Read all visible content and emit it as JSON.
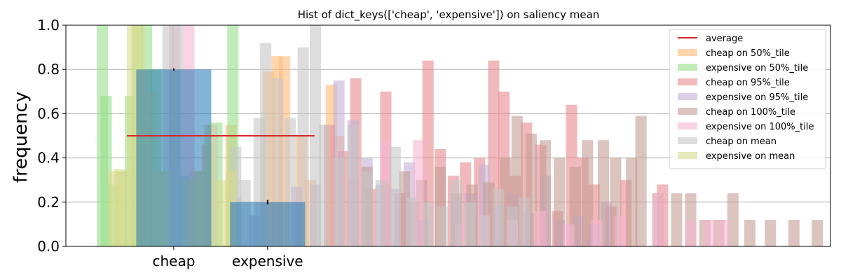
{
  "chart_data": {
    "type": "bar",
    "title": "Hist of dict_keys(['cheap', 'expensive']) on saliency mean",
    "xlabel": "",
    "ylabel": "frequency",
    "ylim": [
      0,
      1.0
    ],
    "yticks": [
      "0.0",
      "0.2",
      "0.4",
      "0.6",
      "0.8",
      "1.0"
    ],
    "grid": "y",
    "legend_position": "top-right",
    "categories": [
      "cheap",
      "expensive"
    ],
    "main_bars": {
      "values": [
        0.8,
        0.2
      ],
      "color": "#1f77b4",
      "error": [
        0.005,
        0.01
      ]
    },
    "average": {
      "name": "average",
      "value": 0.5,
      "color": "#d62728"
    },
    "series": [
      {
        "name": "cheap on 50%_tile",
        "color": "#ffbb78",
        "bars": [
          [
            0.18,
            0.34
          ],
          [
            0.3,
            0.46
          ],
          [
            0.55,
            0.55
          ],
          [
            0.95,
            0.79
          ],
          [
            1.04,
            0.86
          ],
          [
            1.12,
            0.86
          ],
          [
            1.3,
            0.5
          ],
          [
            1.4,
            0.3
          ],
          [
            1.62,
            0.73
          ],
          [
            1.7,
            0.5
          ],
          [
            1.85,
            0.3
          ]
        ]
      },
      {
        "name": "expensive on 50%_tile",
        "color": "#98df8a",
        "bars": [
          [
            -0.82,
            1.0
          ],
          [
            -0.78,
            0.68
          ],
          [
            -0.7,
            0.28
          ],
          [
            -0.62,
            0.34
          ],
          [
            -0.52,
            0.68
          ],
          [
            -0.45,
            1.0
          ],
          [
            -0.35,
            1.0
          ],
          [
            -0.25,
            0.8
          ],
          [
            -0.05,
            0.8
          ],
          [
            0.05,
            0.32
          ],
          [
            0.4,
            0.56
          ],
          [
            0.57,
            1.0
          ]
        ]
      },
      {
        "name": "cheap on 95%_tile",
        "color": "#e88b8d",
        "bars": [
          [
            1.6,
            0.55
          ],
          [
            1.75,
            0.43
          ],
          [
            1.88,
            0.76
          ],
          [
            2.04,
            0.26
          ],
          [
            2.2,
            0.7
          ],
          [
            2.35,
            0.24
          ],
          [
            2.5,
            0.2
          ],
          [
            2.65,
            0.84
          ],
          [
            2.78,
            0.44
          ],
          [
            2.92,
            0.32
          ],
          [
            3.05,
            0.38
          ],
          [
            3.2,
            0.4
          ],
          [
            3.35,
            0.84
          ],
          [
            3.46,
            0.7
          ],
          [
            3.58,
            0.32
          ],
          [
            3.7,
            0.56
          ],
          [
            3.85,
            0.46
          ],
          [
            4.03,
            0.16
          ],
          [
            4.18,
            0.64
          ],
          [
            4.3,
            0.4
          ],
          [
            4.42,
            0.28
          ],
          [
            4.6,
            0.18
          ],
          [
            4.76,
            0.3
          ],
          [
            5.15,
            0.28
          ]
        ]
      },
      {
        "name": "expensive on 95%_tile",
        "color": "#c5b0d5",
        "bars": [
          [
            0.6,
            0.22
          ],
          [
            0.8,
            0.14
          ],
          [
            1.25,
            0.27
          ],
          [
            1.45,
            0.28
          ],
          [
            1.7,
            0.75
          ],
          [
            1.85,
            0.57
          ],
          [
            2.0,
            0.4
          ],
          [
            2.15,
            0.28
          ],
          [
            2.3,
            0.26
          ],
          [
            2.45,
            0.38
          ],
          [
            2.6,
            0.12
          ],
          [
            2.95,
            0.22
          ],
          [
            3.1,
            0.24
          ],
          [
            3.25,
            0.37
          ],
          [
            3.4,
            0.18
          ],
          [
            3.55,
            0.24
          ],
          [
            3.72,
            0.15
          ],
          [
            3.9,
            0.32
          ],
          [
            4.05,
            0.12
          ],
          [
            4.25,
            0.14
          ],
          [
            4.4,
            0.1
          ],
          [
            4.55,
            0.2
          ]
        ]
      },
      {
        "name": "cheap on 100%_tile",
        "color": "#c49c94",
        "bars": [
          [
            2.0,
            0.36
          ],
          [
            2.2,
            0.28
          ],
          [
            2.4,
            0.34
          ],
          [
            2.58,
            0.3
          ],
          [
            2.78,
            0.36
          ],
          [
            2.95,
            0.24
          ],
          [
            3.12,
            0.28
          ],
          [
            3.3,
            0.29
          ],
          [
            3.48,
            0.4
          ],
          [
            3.6,
            0.59
          ],
          [
            3.75,
            0.51
          ],
          [
            3.9,
            0.48
          ],
          [
            4.05,
            0.4
          ],
          [
            4.22,
            0.36
          ],
          [
            4.35,
            0.48
          ],
          [
            4.52,
            0.48
          ],
          [
            4.65,
            0.4
          ],
          [
            4.82,
            0.4
          ],
          [
            4.92,
            0.59
          ],
          [
            5.1,
            0.24
          ],
          [
            5.3,
            0.24
          ],
          [
            5.45,
            0.24
          ],
          [
            5.6,
            0.12
          ],
          [
            5.75,
            0.12
          ],
          [
            5.9,
            0.24
          ],
          [
            6.08,
            0.12
          ],
          [
            6.3,
            0.12
          ],
          [
            6.55,
            0.12
          ],
          [
            6.8,
            0.12
          ]
        ]
      },
      {
        "name": "expensive on 100%_tile",
        "color": "#f7b6d2",
        "bars": [
          [
            -0.05,
            1.0
          ],
          [
            0.1,
            1.0
          ],
          [
            2.2,
            0.48
          ],
          [
            2.55,
            0.48
          ],
          [
            3.0,
            0.1
          ],
          [
            3.25,
            0.14
          ],
          [
            3.55,
            0.12
          ],
          [
            3.85,
            0.16
          ],
          [
            4.15,
            0.1
          ],
          [
            4.45,
            0.12
          ],
          [
            4.7,
            0.14
          ],
          [
            5.1,
            0.24
          ],
          [
            5.45,
            0.12
          ],
          [
            5.65,
            0.12
          ],
          [
            5.8,
            0.12
          ]
        ]
      },
      {
        "name": "cheap on mean",
        "color": "#c7c7c7",
        "bars": [
          [
            -0.12,
            1.0
          ],
          [
            -0.02,
            1.0
          ],
          [
            0.35,
            0.55
          ],
          [
            0.6,
            0.45
          ],
          [
            0.7,
            0.3
          ],
          [
            0.85,
            0.58
          ],
          [
            0.92,
            0.92
          ],
          [
            1.05,
            0.76
          ],
          [
            1.18,
            0.58
          ],
          [
            1.32,
            0.9
          ],
          [
            1.45,
            1.0
          ],
          [
            1.55,
            0.55
          ],
          [
            1.7,
            0.4
          ],
          [
            1.85,
            0.55
          ],
          [
            2.0,
            0.34
          ],
          [
            2.15,
            0.3
          ],
          [
            2.3,
            0.45
          ],
          [
            2.48,
            0.22
          ],
          [
            2.65,
            0.2
          ],
          [
            2.8,
            0.18
          ],
          [
            2.95,
            0.3
          ],
          [
            3.1,
            0.2
          ],
          [
            3.25,
            0.14
          ],
          [
            3.4,
            0.26
          ],
          [
            3.55,
            0.18
          ],
          [
            3.68,
            0.22
          ]
        ]
      },
      {
        "name": "expensive on mean",
        "color": "#dbdb8d",
        "bars": [
          [
            -0.7,
            0.34
          ],
          [
            -0.64,
            0.35
          ],
          [
            -0.58,
            0.34
          ],
          [
            -0.5,
            1.0
          ],
          [
            -0.43,
            1.0
          ],
          [
            -0.38,
            0.8
          ],
          [
            -0.3,
            0.7
          ],
          [
            -0.22,
            0.34
          ],
          [
            -0.15,
            0.34
          ],
          [
            0.12,
            0.3
          ],
          [
            0.22,
            0.34
          ],
          [
            0.32,
            0.55
          ],
          [
            0.45,
            0.3
          ],
          [
            0.55,
            0.34
          ]
        ]
      }
    ]
  }
}
